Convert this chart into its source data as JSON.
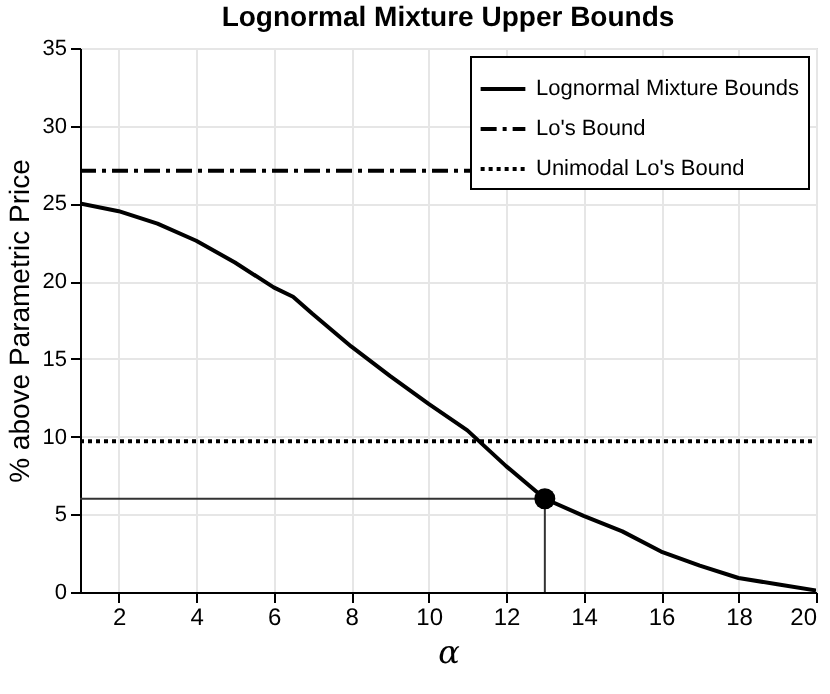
{
  "chart_data": {
    "type": "line",
    "title": "Lognormal Mixture Upper Bounds",
    "xlabel": "α",
    "ylabel": "% above Parametric Price",
    "xlim": [
      1,
      20
    ],
    "xticks": [
      2,
      4,
      6,
      8,
      10,
      12,
      14,
      16,
      18,
      20
    ],
    "ylim": [
      0,
      35
    ],
    "yticks": [
      0,
      5,
      10,
      15,
      20,
      25,
      30,
      35
    ],
    "grid": true,
    "legend": "top right",
    "series": [
      {
        "name": "Lognormal Mixture Bounds",
        "color": "#000000",
        "line_style": "solid",
        "x": [
          1,
          2,
          3,
          4,
          5,
          6,
          6.5,
          7,
          8,
          9,
          10,
          11,
          12,
          13,
          14,
          15,
          16,
          17,
          18,
          19,
          20
        ],
        "values": [
          25,
          24.5,
          23.7,
          22.6,
          21.2,
          19.6,
          19.0,
          17.9,
          15.8,
          13.9,
          12.1,
          10.4,
          8.1,
          6.0,
          4.9,
          3.9,
          2.6,
          1.7,
          0.9,
          0.5,
          0.1
        ]
      },
      {
        "name": "Lo's Bound",
        "color": "#000000",
        "line_style": "dashed",
        "x": [
          1,
          20
        ],
        "values": [
          27.1,
          27.1
        ]
      },
      {
        "name": "Unimodal Lo's Bound",
        "color": "#000000",
        "line_style": "dotted",
        "x": [
          1,
          20
        ],
        "values": [
          9.7,
          9.7
        ]
      },
      {
        "color": "#333333",
        "line_style": "solid",
        "x": [
          1,
          13
        ],
        "values": [
          6.0,
          6.0
        ]
      },
      {
        "color": "#333333",
        "line_style": "solid",
        "x": [
          13,
          13
        ],
        "values": [
          0,
          6.0
        ]
      },
      {
        "type": "scatter",
        "color": "#000000",
        "marker": "circle",
        "x": [
          13
        ],
        "values": [
          6.0
        ]
      }
    ]
  }
}
